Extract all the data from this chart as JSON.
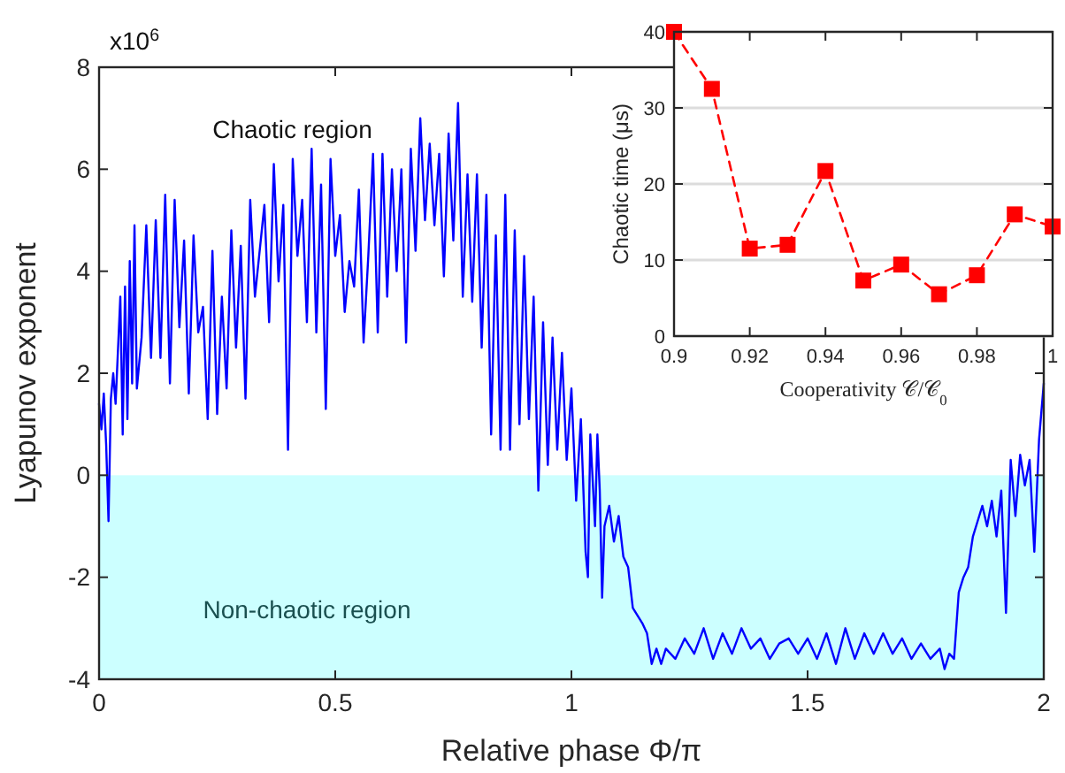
{
  "chart_data": [
    {
      "type": "line",
      "xlabel": "Relative phase Φ/π",
      "ylabel": "Lyapunov exponent",
      "annotations": [
        "x10$^{6}$",
        "Chaotic region"
      ],
      "xlim": [
        0,
        2
      ],
      "ylim": [
        -4,
        8
      ],
      "xticks": [
        0,
        0.5,
        1,
        1.5,
        2
      ],
      "yticks": [
        -4,
        -2,
        0,
        2,
        4,
        6,
        8
      ],
      "grid": false,
      "marker": "none",
      "line_style": "solid",
      "bands": [
        {
          "axis": "y",
          "from": -4,
          "to": 0,
          "label": "Non-chaotic region",
          "color": "#ccffff"
        }
      ],
      "x": [
        0,
        0.005,
        0.01,
        0.015,
        0.02,
        0.025,
        0.03,
        0.035,
        0.045,
        0.05,
        0.055,
        0.06,
        0.065,
        0.07,
        0.075,
        0.08,
        0.09,
        0.1,
        0.11,
        0.12,
        0.13,
        0.14,
        0.15,
        0.16,
        0.17,
        0.18,
        0.19,
        0.2,
        0.21,
        0.22,
        0.23,
        0.24,
        0.25,
        0.26,
        0.27,
        0.28,
        0.29,
        0.3,
        0.31,
        0.32,
        0.33,
        0.35,
        0.36,
        0.37,
        0.38,
        0.39,
        0.4,
        0.41,
        0.42,
        0.43,
        0.44,
        0.45,
        0.46,
        0.47,
        0.48,
        0.49,
        0.5,
        0.51,
        0.52,
        0.53,
        0.54,
        0.55,
        0.56,
        0.57,
        0.58,
        0.59,
        0.6,
        0.61,
        0.62,
        0.63,
        0.64,
        0.65,
        0.66,
        0.67,
        0.68,
        0.69,
        0.7,
        0.71,
        0.72,
        0.73,
        0.74,
        0.75,
        0.76,
        0.77,
        0.78,
        0.79,
        0.8,
        0.81,
        0.82,
        0.83,
        0.84,
        0.85,
        0.86,
        0.87,
        0.88,
        0.89,
        0.9,
        0.91,
        0.92,
        0.93,
        0.94,
        0.95,
        0.96,
        0.97,
        0.98,
        0.99,
        1.0,
        1.01,
        1.02,
        1.03,
        1.035,
        1.04,
        1.05,
        1.055,
        1.06,
        1.065,
        1.07,
        1.08,
        1.09,
        1.1,
        1.11,
        1.12,
        1.13,
        1.15,
        1.16,
        1.17,
        1.18,
        1.19,
        1.2,
        1.22,
        1.24,
        1.26,
        1.28,
        1.3,
        1.32,
        1.34,
        1.36,
        1.38,
        1.4,
        1.42,
        1.44,
        1.46,
        1.48,
        1.5,
        1.52,
        1.54,
        1.56,
        1.58,
        1.6,
        1.62,
        1.64,
        1.66,
        1.68,
        1.7,
        1.72,
        1.74,
        1.76,
        1.78,
        1.79,
        1.8,
        1.81,
        1.82,
        1.83,
        1.84,
        1.85,
        1.86,
        1.87,
        1.88,
        1.89,
        1.9,
        1.91,
        1.92,
        1.93,
        1.94,
        1.95,
        1.96,
        1.97,
        1.98,
        1.99,
        2.0
      ],
      "series": [
        {
          "color": "#0000ff",
          "values": [
            1.4,
            0.9,
            1.6,
            0.6,
            -0.9,
            1.5,
            2.0,
            1.4,
            3.5,
            0.8,
            3.7,
            1.1,
            4.2,
            1.8,
            4.9,
            1.7,
            2.7,
            4.9,
            2.3,
            5.0,
            2.3,
            5.5,
            1.8,
            5.4,
            2.9,
            4.6,
            1.6,
            4.7,
            2.8,
            3.3,
            1.1,
            4.4,
            1.2,
            3.5,
            1.7,
            4.8,
            2.5,
            4.5,
            1.5,
            5.4,
            3.5,
            5.3,
            3.0,
            6.1,
            3.8,
            5.3,
            0.5,
            6.2,
            4.3,
            5.4,
            3.0,
            6.4,
            2.8,
            5.7,
            1.3,
            6.2,
            4.3,
            5.1,
            3.2,
            4.2,
            3.7,
            5.6,
            2.6,
            4.3,
            6.3,
            2.8,
            6.3,
            3.5,
            6.0,
            4.0,
            6.0,
            2.6,
            6.4,
            4.4,
            7.0,
            5.0,
            6.5,
            4.9,
            6.3,
            3.9,
            6.7,
            4.6,
            7.3,
            3.5,
            5.9,
            3.4,
            5.9,
            2.5,
            5.5,
            0.8,
            4.7,
            0.5,
            5.5,
            0.5,
            4.8,
            1.0,
            4.3,
            1.1,
            3.5,
            -0.3,
            3.0,
            0.2,
            2.7,
            0.5,
            2.4,
            0.3,
            1.7,
            -0.5,
            1.1,
            -1.5,
            -2.0,
            0.8,
            -1.0,
            0.8,
            -0.3,
            -2.4,
            -1.0,
            -0.6,
            -1.3,
            -0.8,
            -1.6,
            -1.8,
            -2.6,
            -2.9,
            -3.1,
            -3.7,
            -3.4,
            -3.7,
            -3.4,
            -3.6,
            -3.2,
            -3.5,
            -3.0,
            -3.6,
            -3.1,
            -3.5,
            -3.0,
            -3.4,
            -3.2,
            -3.6,
            -3.3,
            -3.2,
            -3.5,
            -3.2,
            -3.6,
            -3.1,
            -3.7,
            -3.0,
            -3.6,
            -3.1,
            -3.5,
            -3.1,
            -3.5,
            -3.2,
            -3.6,
            -3.3,
            -3.6,
            -3.4,
            -3.8,
            -3.5,
            -3.6,
            -2.3,
            -2.0,
            -1.8,
            -1.2,
            -0.9,
            -0.6,
            -1.0,
            -0.5,
            -1.2,
            -0.3,
            -2.7,
            0.3,
            -0.8,
            0.4,
            -0.2,
            0.3,
            -1.5,
            0.7,
            1.8
          ]
        }
      ]
    },
    {
      "type": "line",
      "xlabel": "Cooperativity 𝒞/𝒞$_{0}$",
      "ylabel": "Chaotic time (μs)",
      "xlim": [
        0.9,
        1
      ],
      "ylim": [
        0,
        40
      ],
      "xticks": [
        0.9,
        0.92,
        0.94,
        0.96,
        0.98,
        1
      ],
      "yticks": [
        0,
        10,
        20,
        30,
        40
      ],
      "grid": "y",
      "marker": "square",
      "line_style": "dashed",
      "x": [
        0.9,
        0.91,
        0.92,
        0.93,
        0.94,
        0.95,
        0.96,
        0.97,
        0.98,
        0.99,
        1.0
      ],
      "series": [
        {
          "color": "#ff0000",
          "values": [
            40,
            32.5,
            11.5,
            12,
            21.7,
            7.3,
            9.4,
            5.5,
            8,
            16,
            14.4
          ]
        }
      ]
    }
  ]
}
